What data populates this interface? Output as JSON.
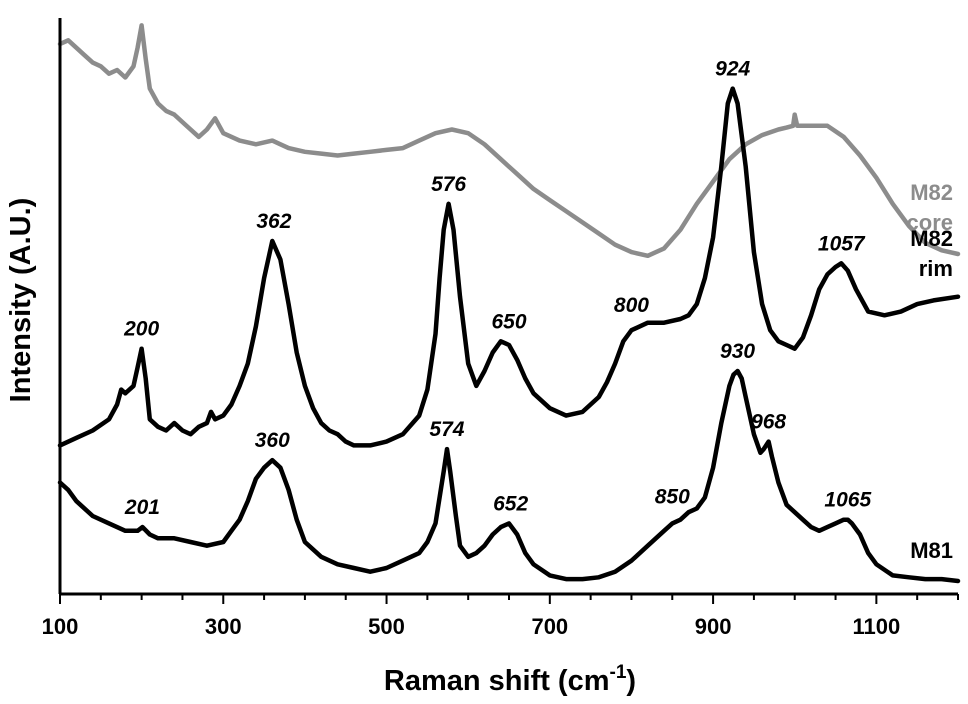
{
  "chart_data": {
    "type": "line",
    "xlabel": "Raman shift (cm",
    "xlabel_sup": "-1",
    "xlabel_close": ")",
    "ylabel": "Intensity (A.U.)",
    "xlim": [
      100,
      1200
    ],
    "xticks": [
      "100",
      "300",
      "500",
      "700",
      "900",
      "1100"
    ],
    "y_ticks_shown": false,
    "grid": false,
    "series": [
      {
        "name": "M82 core",
        "label_lines": [
          "M82",
          "core"
        ],
        "color": "#8c8c8c",
        "x": [
          100,
          110,
          120,
          130,
          140,
          150,
          160,
          170,
          180,
          190,
          195,
          200,
          205,
          210,
          220,
          230,
          240,
          250,
          260,
          270,
          280,
          290,
          300,
          320,
          340,
          360,
          370,
          380,
          400,
          420,
          440,
          460,
          480,
          500,
          520,
          540,
          560,
          580,
          600,
          620,
          640,
          660,
          680,
          700,
          720,
          740,
          760,
          780,
          800,
          820,
          840,
          860,
          880,
          900,
          920,
          940,
          960,
          980,
          990,
          998,
          1000,
          1003,
          1010,
          1020,
          1040,
          1060,
          1080,
          1100,
          1120,
          1140,
          1160,
          1180,
          1200
        ],
        "y": [
          14.8,
          14.9,
          14.7,
          14.5,
          14.3,
          14.2,
          14.0,
          14.1,
          13.9,
          14.2,
          14.7,
          15.3,
          14.4,
          13.6,
          13.2,
          13.0,
          12.9,
          12.7,
          12.5,
          12.3,
          12.5,
          12.8,
          12.4,
          12.2,
          12.1,
          12.2,
          12.1,
          12.0,
          11.9,
          11.85,
          11.8,
          11.85,
          11.9,
          11.95,
          12.0,
          12.2,
          12.4,
          12.5,
          12.4,
          12.1,
          11.7,
          11.3,
          10.9,
          10.6,
          10.3,
          10.0,
          9.7,
          9.4,
          9.2,
          9.1,
          9.3,
          9.8,
          10.5,
          11.1,
          11.7,
          12.1,
          12.35,
          12.5,
          12.55,
          12.6,
          12.9,
          12.6,
          12.6,
          12.6,
          12.6,
          12.3,
          11.8,
          11.2,
          10.5,
          9.9,
          9.45,
          9.25,
          9.15
        ]
      },
      {
        "name": "M82 rim",
        "label_lines": [
          "M82",
          "rim"
        ],
        "color": "#000000",
        "x": [
          100,
          120,
          140,
          160,
          170,
          175,
          180,
          190,
          195,
          200,
          205,
          210,
          220,
          230,
          240,
          250,
          260,
          270,
          280,
          285,
          290,
          300,
          310,
          320,
          330,
          340,
          350,
          360,
          370,
          380,
          390,
          400,
          410,
          420,
          430,
          440,
          450,
          460,
          480,
          500,
          520,
          540,
          550,
          560,
          565,
          570,
          576,
          582,
          590,
          600,
          610,
          620,
          630,
          640,
          650,
          660,
          670,
          680,
          700,
          720,
          740,
          760,
          770,
          780,
          790,
          800,
          820,
          840,
          860,
          870,
          880,
          890,
          900,
          910,
          918,
          924,
          930,
          940,
          950,
          960,
          970,
          980,
          990,
          1000,
          1010,
          1020,
          1030,
          1040,
          1050,
          1057,
          1065,
          1075,
          1090,
          1110,
          1130,
          1150,
          1170,
          1200
        ],
        "y": [
          4.0,
          4.2,
          4.4,
          4.7,
          5.1,
          5.5,
          5.4,
          5.6,
          6.1,
          6.6,
          5.8,
          4.7,
          4.5,
          4.4,
          4.6,
          4.4,
          4.3,
          4.5,
          4.6,
          4.9,
          4.7,
          4.8,
          5.1,
          5.6,
          6.2,
          7.2,
          8.5,
          9.5,
          9.0,
          7.8,
          6.5,
          5.6,
          5.0,
          4.6,
          4.4,
          4.3,
          4.1,
          4.0,
          4.0,
          4.1,
          4.3,
          4.8,
          5.5,
          7.0,
          8.5,
          9.8,
          10.5,
          9.8,
          8.0,
          6.2,
          5.6,
          6.0,
          6.5,
          6.8,
          6.7,
          6.3,
          5.8,
          5.4,
          5.0,
          4.8,
          4.9,
          5.3,
          5.7,
          6.2,
          6.8,
          7.1,
          7.3,
          7.3,
          7.4,
          7.5,
          7.8,
          8.5,
          9.6,
          11.5,
          13.2,
          13.6,
          13.2,
          11.5,
          9.2,
          7.8,
          7.1,
          6.8,
          6.7,
          6.6,
          6.9,
          7.5,
          8.2,
          8.6,
          8.8,
          8.9,
          8.7,
          8.2,
          7.6,
          7.5,
          7.6,
          7.8,
          7.9,
          8.0
        ]
      },
      {
        "name": "M81",
        "label_lines": [
          "M81"
        ],
        "color": "#000000",
        "x": [
          100,
          110,
          120,
          140,
          160,
          180,
          195,
          201,
          210,
          220,
          230,
          240,
          260,
          280,
          300,
          310,
          320,
          330,
          340,
          350,
          360,
          370,
          380,
          390,
          400,
          420,
          440,
          460,
          480,
          500,
          520,
          540,
          550,
          560,
          565,
          570,
          574,
          578,
          585,
          590,
          600,
          610,
          620,
          630,
          640,
          650,
          660,
          670,
          680,
          700,
          720,
          740,
          760,
          780,
          800,
          820,
          840,
          850,
          860,
          870,
          880,
          890,
          900,
          910,
          920,
          925,
          930,
          935,
          940,
          950,
          958,
          962,
          968,
          972,
          980,
          990,
          1000,
          1010,
          1020,
          1030,
          1040,
          1050,
          1060,
          1065,
          1070,
          1080,
          1090,
          1100,
          1120,
          1140,
          1160,
          1180,
          1200
        ],
        "y": [
          3.0,
          2.8,
          2.5,
          2.1,
          1.9,
          1.7,
          1.7,
          1.8,
          1.6,
          1.5,
          1.5,
          1.5,
          1.4,
          1.3,
          1.4,
          1.7,
          2.0,
          2.5,
          3.1,
          3.4,
          3.6,
          3.4,
          2.8,
          2.0,
          1.4,
          1.0,
          0.8,
          0.7,
          0.6,
          0.7,
          0.9,
          1.1,
          1.4,
          1.9,
          2.6,
          3.3,
          3.9,
          3.3,
          2.1,
          1.3,
          1.0,
          1.1,
          1.3,
          1.6,
          1.8,
          1.9,
          1.6,
          1.1,
          0.8,
          0.5,
          0.4,
          0.4,
          0.45,
          0.6,
          0.9,
          1.3,
          1.7,
          1.9,
          2.0,
          2.2,
          2.3,
          2.6,
          3.4,
          4.6,
          5.6,
          5.9,
          6.0,
          5.8,
          5.3,
          4.3,
          3.8,
          3.9,
          4.1,
          3.7,
          3.0,
          2.4,
          2.2,
          2.0,
          1.8,
          1.7,
          1.8,
          1.9,
          2.0,
          2.0,
          1.9,
          1.6,
          1.1,
          0.8,
          0.5,
          0.45,
          0.4,
          0.4,
          0.35
        ]
      }
    ],
    "annotations": [
      {
        "text": "924",
        "series": "M82 rim",
        "x": 924
      },
      {
        "text": "576",
        "series": "M82 rim",
        "x": 576
      },
      {
        "text": "362",
        "series": "M82 rim",
        "x": 362
      },
      {
        "text": "200",
        "series": "M82 rim",
        "x": 200
      },
      {
        "text": "650",
        "series": "M82 rim",
        "x": 650
      },
      {
        "text": "800",
        "series": "M82 rim",
        "x": 800
      },
      {
        "text": "1057",
        "series": "M82 rim",
        "x": 1057
      },
      {
        "text": "930",
        "series": "M81",
        "x": 930
      },
      {
        "text": "360",
        "series": "M81",
        "x": 360
      },
      {
        "text": "574",
        "series": "M81",
        "x": 574
      },
      {
        "text": "201",
        "series": "M81",
        "x": 201
      },
      {
        "text": "652",
        "series": "M81",
        "x": 652
      },
      {
        "text": "850",
        "series": "M81",
        "x": 850
      },
      {
        "text": "968",
        "series": "M81",
        "x": 968
      },
      {
        "text": "1065",
        "series": "M81",
        "x": 1065
      }
    ]
  }
}
